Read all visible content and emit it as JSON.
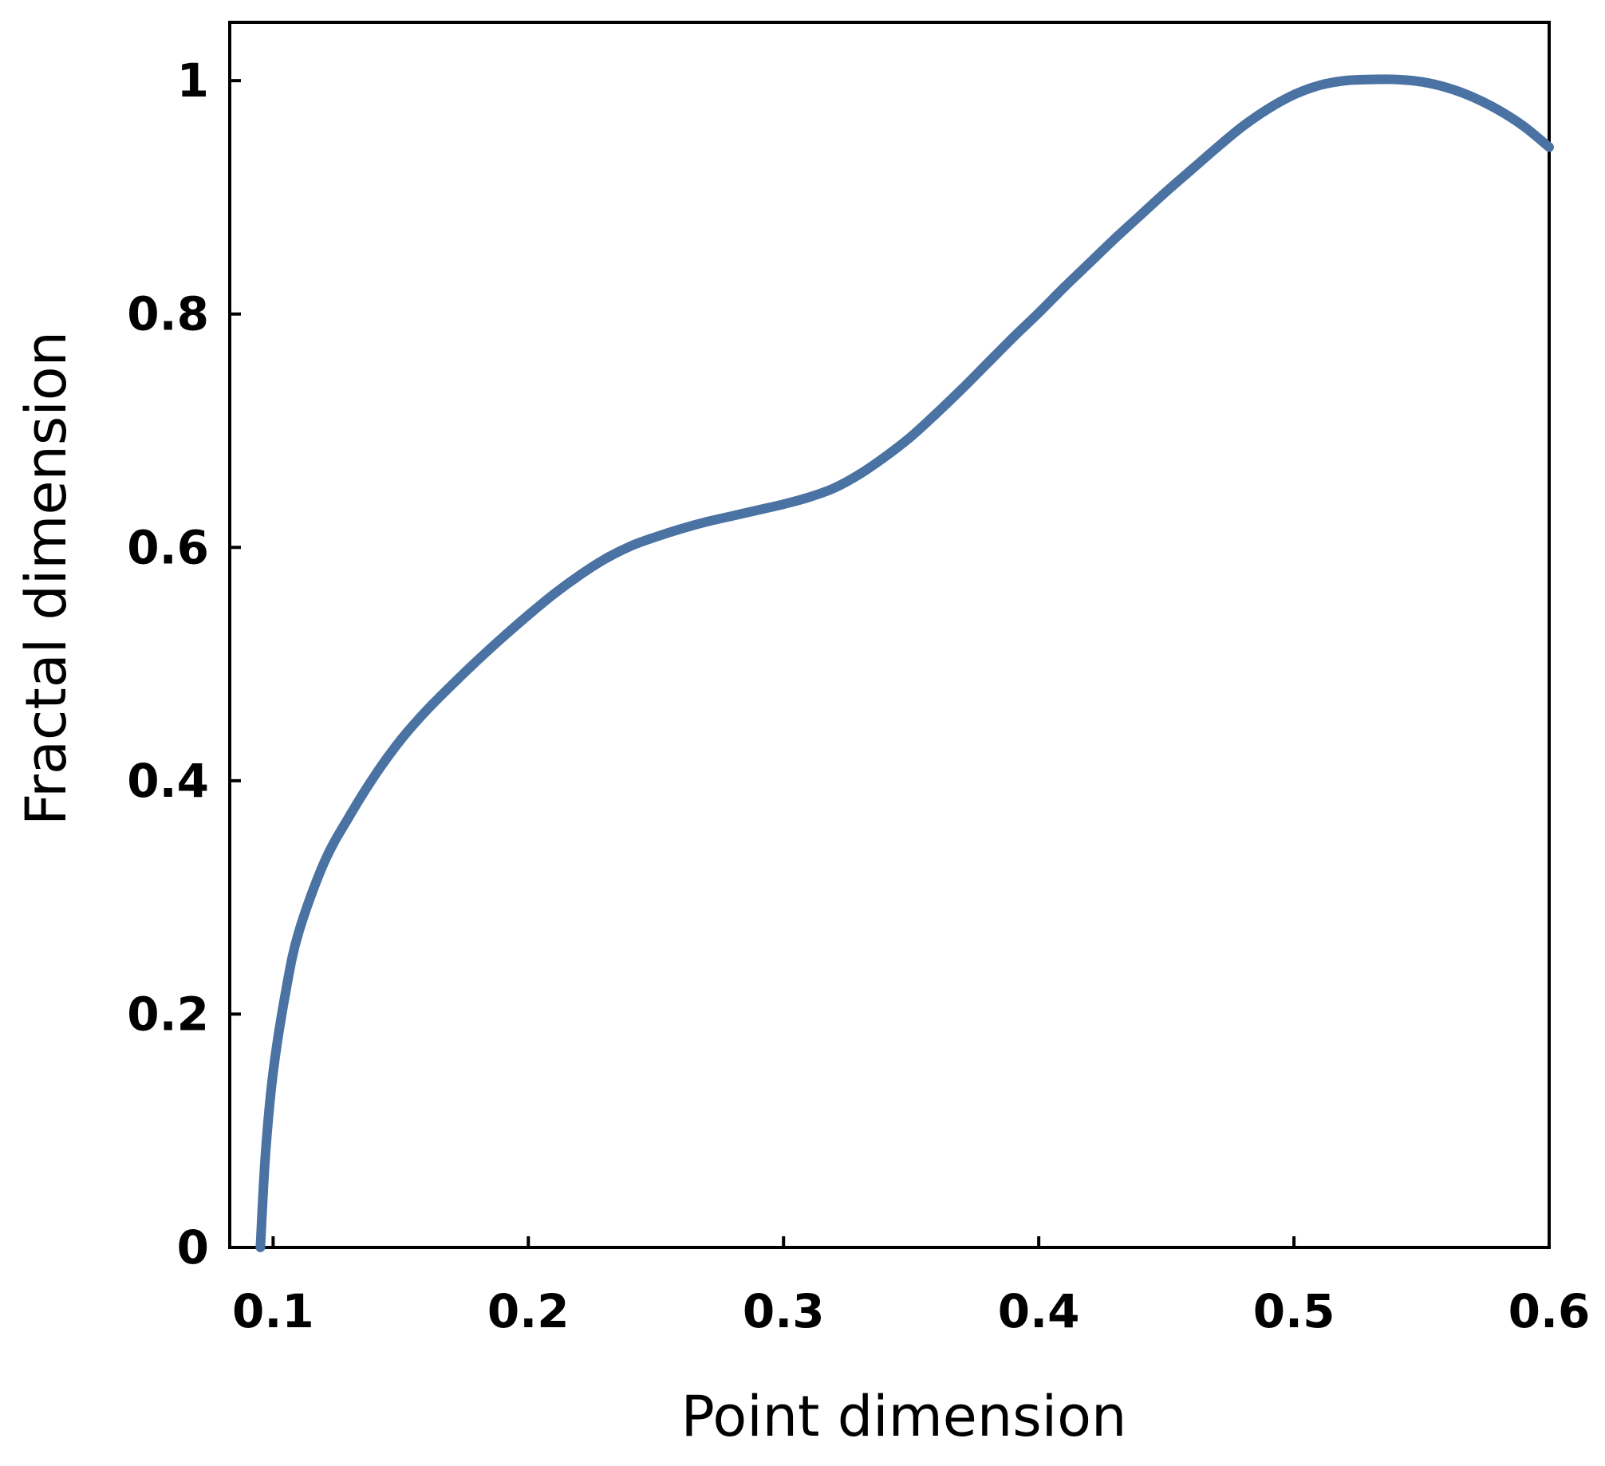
{
  "chart_data": {
    "type": "line",
    "title": "",
    "xlabel": "Point dimension",
    "ylabel": "Fractal dimension",
    "xlim": [
      0.083,
      0.6
    ],
    "ylim": [
      0,
      1.05
    ],
    "x_ticks": [
      0.1,
      0.2,
      0.3,
      0.4,
      0.5,
      0.6
    ],
    "x_tick_labels": [
      "0.1",
      "0.2",
      "0.3",
      "0.4",
      "0.5",
      "0.6"
    ],
    "y_ticks": [
      0,
      0.2,
      0.4,
      0.6,
      0.8,
      1
    ],
    "y_tick_labels": [
      "0",
      "0.2",
      "0.4",
      "0.6",
      "0.8",
      "1"
    ],
    "grid": false,
    "legend": "none",
    "series": [
      {
        "color": "#4a72a2",
        "x": [
          0.095,
          0.097,
          0.1,
          0.105,
          0.11,
          0.12,
          0.13,
          0.14,
          0.15,
          0.16,
          0.17,
          0.18,
          0.19,
          0.2,
          0.21,
          0.22,
          0.23,
          0.24,
          0.25,
          0.26,
          0.27,
          0.28,
          0.29,
          0.3,
          0.31,
          0.32,
          0.33,
          0.34,
          0.35,
          0.36,
          0.37,
          0.38,
          0.39,
          0.4,
          0.41,
          0.42,
          0.43,
          0.44,
          0.45,
          0.46,
          0.47,
          0.48,
          0.49,
          0.5,
          0.51,
          0.52,
          0.53,
          0.54,
          0.55,
          0.56,
          0.57,
          0.58,
          0.59,
          0.6
        ],
        "y": [
          0.0,
          0.08,
          0.15,
          0.22,
          0.27,
          0.33,
          0.37,
          0.405,
          0.435,
          0.46,
          0.482,
          0.503,
          0.523,
          0.542,
          0.56,
          0.576,
          0.59,
          0.601,
          0.609,
          0.616,
          0.622,
          0.627,
          0.632,
          0.637,
          0.643,
          0.651,
          0.663,
          0.678,
          0.695,
          0.715,
          0.736,
          0.758,
          0.78,
          0.801,
          0.823,
          0.844,
          0.865,
          0.885,
          0.905,
          0.924,
          0.943,
          0.961,
          0.976,
          0.988,
          0.996,
          1.0,
          1.001,
          1.001,
          0.999,
          0.994,
          0.986,
          0.975,
          0.961,
          0.943
        ]
      }
    ]
  }
}
